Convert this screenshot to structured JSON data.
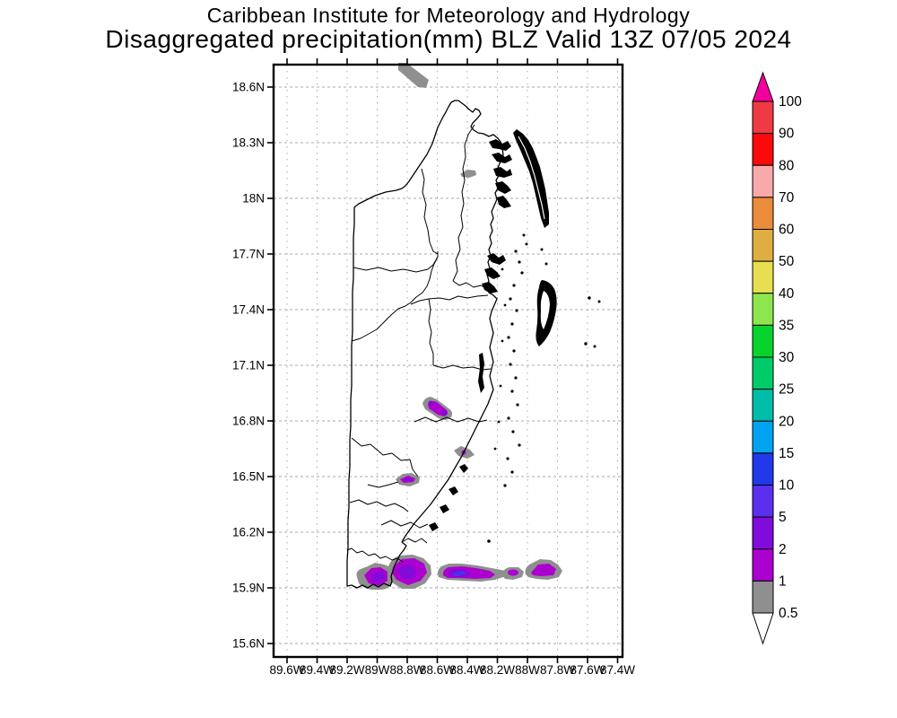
{
  "title": {
    "line1": "Caribbean Institute for Meteorology and Hydrology",
    "line2": "Disaggregated precipitation(mm) BLZ Valid 13Z 07/05 2024"
  },
  "map": {
    "region": "Belize",
    "lat_labels": [
      "18.6N",
      "18.3N",
      "18N",
      "17.7N",
      "17.4N",
      "17.1N",
      "16.8N",
      "16.5N",
      "16.2N",
      "15.9N",
      "15.6N"
    ],
    "lon_labels": [
      "89.6W",
      "89.4W",
      "89.2W",
      "89W",
      "88.8W",
      "88.6W",
      "88.4W",
      "88.2W",
      "88W",
      "87.8W",
      "87.6W",
      "87.4W"
    ]
  },
  "colorbar": {
    "labels": [
      "100",
      "90",
      "80",
      "70",
      "60",
      "50",
      "40",
      "35",
      "30",
      "25",
      "20",
      "15",
      "10",
      "5",
      "2",
      "1",
      "0.5"
    ],
    "segment_colors_top_to_bottom": [
      "#ee3a42",
      "#fa0a0a",
      "#faa9ab",
      "#ea8c3a",
      "#dfae43",
      "#e7de50",
      "#8ee64e",
      "#06d42d",
      "#00cb69",
      "#00bda9",
      "#00a3ef",
      "#2138ea",
      "#5a30ee",
      "#810bda",
      "#ab00cf",
      "#8f8f8f"
    ],
    "above_max_arrow_color": "#f2009c",
    "below_min_arrow_color": "#ffffff"
  },
  "palette": {
    "gray_0p5_1": "#8f8f8f",
    "purple_1_2": "#ab00cf",
    "violet_2_5": "#810bda",
    "blue_violet_5_10": "#5a30ee",
    "blue_10_15": "#2f3cec",
    "grid": "#a9a9a9",
    "outline": "#000000"
  },
  "chart_data": {
    "type": "filled-contour-map",
    "title": "Disaggregated precipitation(mm) BLZ Valid 13Z 07/05 2024",
    "variable": "precipitation (mm)",
    "region_code": "BLZ",
    "valid_time": "13Z 07/05 2024",
    "lat_axis": {
      "min": "15.6N",
      "max": "18.6N",
      "step_deg": 0.3
    },
    "lon_axis": {
      "min": "89.6W",
      "max": "87.4W",
      "step_deg": 0.2
    },
    "grid": true,
    "legend_position": "right colorbar",
    "scale_levels_mm": [
      0.5,
      1,
      2,
      5,
      10,
      15,
      20,
      25,
      30,
      35,
      40,
      50,
      60,
      70,
      80,
      90,
      100
    ],
    "features": [
      {
        "name": "gray streak at top edge",
        "lat": "18.65N",
        "lon": "88.85W",
        "intensity_mm": "0.5-1"
      },
      {
        "name": "small gray spot",
        "lat": "18.14N",
        "lon": "88.4W",
        "intensity_mm": "0.5-1"
      },
      {
        "name": "purple cell (NW-SE)",
        "lat": "16.85N",
        "lon": "88.55W",
        "intensity_mm": "2-5"
      },
      {
        "name": "small gray spot",
        "lat": "16.58N",
        "lon": "88.37W",
        "intensity_mm": "0.5-2"
      },
      {
        "name": "small purple cell",
        "lat": "16.5N",
        "lon": "88.8W",
        "intensity_mm": "2-5"
      },
      {
        "name": "broken E-W band of purple cells",
        "lat": "15.95N",
        "lon": "89.1W to 87.75W",
        "intensity_mm": "5-15 in cores"
      }
    ]
  }
}
